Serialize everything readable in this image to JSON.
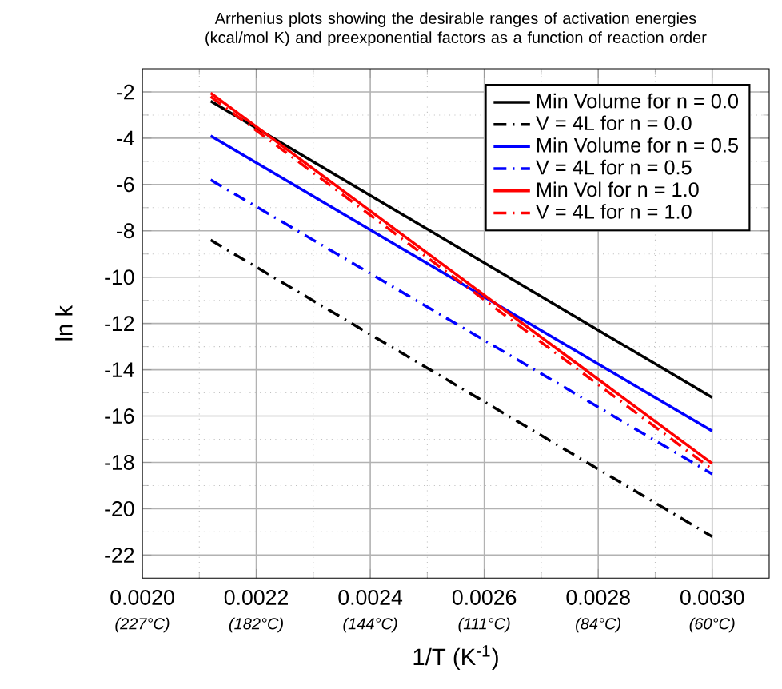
{
  "chart_data": {
    "type": "line",
    "title": "Arrhenius plots showing the desirable ranges of activation energies (kcal/mol K) and preexponential factors as a function of reaction order",
    "xlabel": "1/T (K$^{-1}$)",
    "ylabel": "ln k",
    "x": [
      0.00212,
      0.003
    ],
    "series": [
      {
        "name": "Min Volume for n = 0.0",
        "color": "#000000",
        "line_style": "solid",
        "values": [
          -2.4,
          -15.2
        ]
      },
      {
        "name": "V = 4L for n = 0.0",
        "color": "#000000",
        "line_style": "dashed",
        "values": [
          -8.4,
          -21.2
        ]
      },
      {
        "name": "Min Volume for n = 0.5",
        "color": "#0000ff",
        "line_style": "solid",
        "values": [
          -3.9,
          -16.65
        ]
      },
      {
        "name": "V = 4L for n = 0.5",
        "color": "#0000ff",
        "line_style": "dashed",
        "values": [
          -5.8,
          -18.5
        ]
      },
      {
        "name": "Min Vol for n = 1.0",
        "color": "#ff0000",
        "line_style": "solid",
        "values": [
          -2.05,
          -18.05
        ]
      },
      {
        "name": "V = 4L for n = 1.0",
        "color": "#ff0000",
        "line_style": "dashed",
        "values": [
          -2.2,
          -18.3
        ]
      }
    ],
    "xlim": [
      0.002,
      0.0031
    ],
    "ylim": [
      -23,
      -1
    ],
    "xticks": [
      {
        "value": 0.002,
        "label": "0.0020"
      },
      {
        "value": 0.0022,
        "label": "0.0022"
      },
      {
        "value": 0.0024,
        "label": "0.0024"
      },
      {
        "value": 0.0026,
        "label": "0.0026"
      },
      {
        "value": 0.0028,
        "label": "0.0028"
      },
      {
        "value": 0.003,
        "label": "0.0030"
      }
    ],
    "annotations": [
      "(227°C)",
      "(182°C)",
      "(144°C)",
      "(111°C)",
      "(84°C)",
      "(60°C)"
    ],
    "yticks": [
      -2,
      -4,
      -6,
      -8,
      -10,
      -12,
      -14,
      -16,
      -18,
      -20,
      -22
    ],
    "grid": true,
    "legend": "top right",
    "marker": "none"
  }
}
